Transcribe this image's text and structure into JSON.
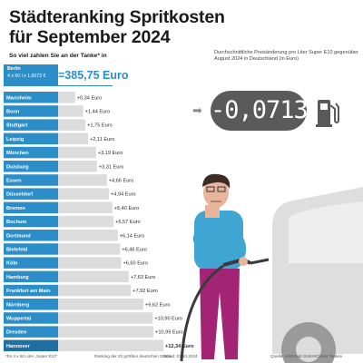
{
  "title_line1": "Städteranking Spritkosten",
  "title_line2": "für September 2024",
  "subtitle": "So viel zahlen Sie an der Tanke* in",
  "hero": {
    "city": "Berlin",
    "formula": "4 x 60 l x 1,6073 €",
    "total": "=385,75 Euro"
  },
  "change_label": "Durchschnittliche Preisänderung pro Liter Super E10 gegenüber August 2024 in Deutschland (in Euro)",
  "change_value": "-0,0713",
  "arrow_text": "➡",
  "footer": {
    "note": "*für 4 x 60 Liter „Super E10\"",
    "ranking": "Ranking der 20 größten deutschen Städte",
    "date": "Stand: 01.10.2024",
    "source": "Quelle: infoRoad GmbH/Clever Tanken"
  },
  "colors": {
    "bar": "#2b8ec9",
    "bar_dark": "#1f6fa3",
    "track": "#dcdcdc",
    "accent": "#2b8ec9"
  },
  "chart_data": {
    "type": "bar",
    "orientation": "horizontal",
    "categories": [
      "Mannheim",
      "Bonn",
      "Stuttgart",
      "Leipzig",
      "München",
      "Duisburg",
      "Essen",
      "Düsseldorf",
      "Bremen",
      "Bochum",
      "Dortmund",
      "Bielefeld",
      "Köln",
      "Hamburg",
      "Frankfurt am Main",
      "Nürnberg",
      "Wuppertal",
      "Dresden",
      "Hannover"
    ],
    "values": [
      0.34,
      1.44,
      1.75,
      2.11,
      3.19,
      3.31,
      4.66,
      4.94,
      5.4,
      5.57,
      6.14,
      6.46,
      6.6,
      7.63,
      7.92,
      9.62,
      10.9,
      10.99,
      12.34
    ],
    "labels": [
      "+0,34 Euro",
      "+1,44 Euro",
      "+1,75 Euro",
      "+2,11 Euro",
      "+3,19 Euro",
      "+3,31 Euro",
      "+4,66 Euro",
      "+4,94 Euro",
      "+5,40 Euro",
      "+5,57 Euro",
      "+6,14 Euro",
      "+6,46 Euro",
      "+6,60 Euro",
      "+7,63 Euro",
      "+7,92 Euro",
      "+9,62 Euro",
      "+10,90 Euro",
      "+10,99 Euro",
      "+12,34 Euro"
    ],
    "highlight_last": true,
    "title": "",
    "xlabel": "",
    "ylabel": ""
  }
}
